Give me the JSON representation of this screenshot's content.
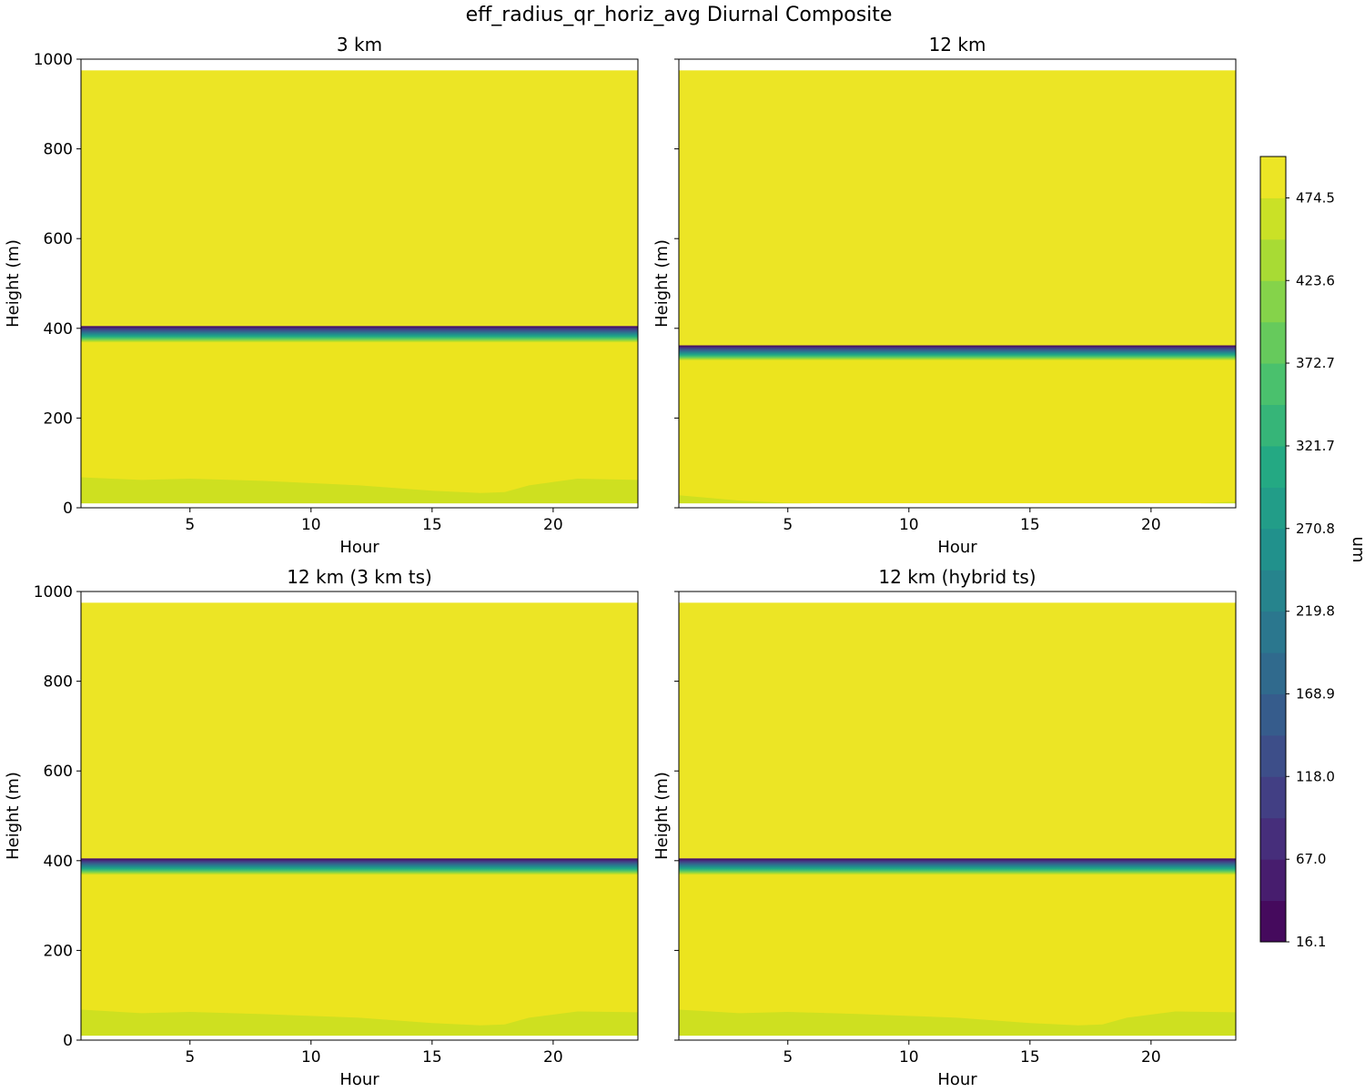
{
  "chart_data": {
    "type": "heatmap",
    "title": "eff_radius_qr_horiz_avg Diurnal Composite",
    "xlabel": "Hour",
    "ylabel": "Height (m)",
    "xlim": [
      0.5,
      23.5
    ],
    "ylim": [
      0,
      1000
    ],
    "xticks": [
      5,
      10,
      15,
      20
    ],
    "yticks": [
      0,
      200,
      400,
      600,
      800,
      1000
    ],
    "data_height_range": [
      10,
      975
    ],
    "colorbar": {
      "label": "um",
      "min": 16.1,
      "max": 500,
      "levels": 19,
      "ticks": [
        "16.1",
        "67.0",
        "118.0",
        "168.9",
        "219.8",
        "270.8",
        "321.7",
        "372.7",
        "423.6",
        "474.5"
      ]
    },
    "panels": [
      {
        "title": "3 km",
        "transition_m": [
          368,
          405
        ],
        "low_band_hours": [
          0.5,
          3,
          5,
          8,
          10,
          12,
          15,
          17,
          18,
          19,
          21,
          23.5
        ],
        "low_band_top_m": [
          68,
          62,
          65,
          60,
          55,
          50,
          38,
          33,
          35,
          50,
          65,
          62
        ]
      },
      {
        "title": "12 km",
        "transition_m": [
          328,
          362
        ],
        "low_band_hours": [
          0.5,
          3,
          5,
          6,
          22,
          23.5
        ],
        "low_band_top_m": [
          28,
          16,
          11,
          10,
          10,
          14
        ]
      },
      {
        "title": "12 km (3 km ts)",
        "transition_m": [
          368,
          405
        ],
        "low_band_hours": [
          0.5,
          3,
          5,
          8,
          10,
          12,
          15,
          17,
          18,
          19,
          21,
          23.5
        ],
        "low_band_top_m": [
          68,
          60,
          63,
          58,
          54,
          50,
          38,
          33,
          35,
          50,
          64,
          62
        ]
      },
      {
        "title": "12 km (hybrid ts)",
        "transition_m": [
          368,
          405
        ],
        "low_band_hours": [
          0.5,
          3,
          5,
          8,
          10,
          12,
          15,
          17,
          18,
          19,
          21,
          23.5
        ],
        "low_band_top_m": [
          68,
          60,
          63,
          58,
          54,
          50,
          38,
          33,
          35,
          50,
          64,
          62
        ]
      }
    ]
  }
}
